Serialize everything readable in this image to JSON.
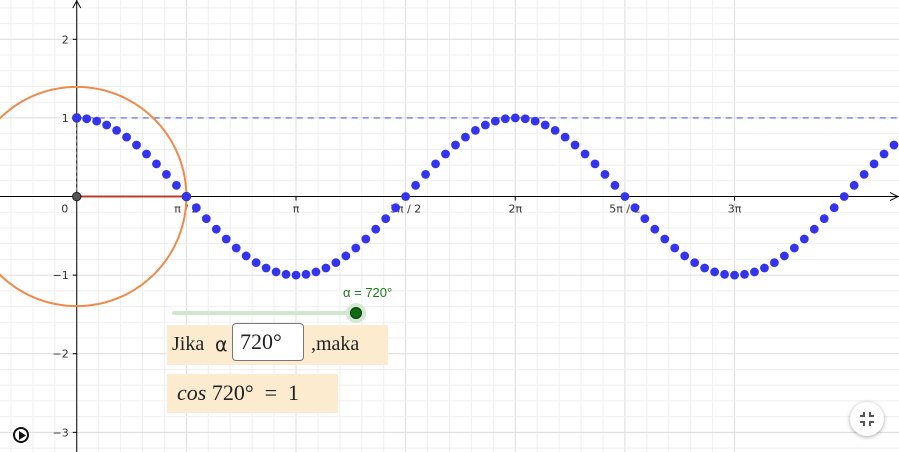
{
  "graph": {
    "x_ticks": [
      "0",
      "π / 2",
      "π",
      "3π / 2",
      "2π",
      "5π / 2",
      "3π"
    ],
    "y_ticks": [
      "2",
      "1",
      "0",
      "−1",
      "−2",
      "−3"
    ],
    "x_range": [
      -0.35,
      3.75
    ],
    "y_range": [
      -3.25,
      2.5
    ],
    "colors": {
      "curve": "#3434ee",
      "unit_circle": "#f08a4b",
      "radius": "#c0392b",
      "dashed_line": "#5c5cef",
      "axis": "#000000",
      "minor_grid": "#efefef",
      "major_grid": "#dcdcdc",
      "slider_track": "#cfe6cf",
      "slider_knob": "#0f6b0f"
    }
  },
  "chart_data": {
    "type": "scatter",
    "series": [
      {
        "x": [
          0,
          0.0455,
          0.0909,
          0.1364,
          0.1818,
          0.2273,
          0.2727,
          0.3182,
          0.3636,
          0.4091,
          0.4545,
          0.5,
          0.5455,
          0.5909,
          0.6364,
          0.6818,
          0.7273,
          0.7727,
          0.8182,
          0.8636,
          0.9091,
          0.9545,
          1,
          1.0455,
          1.0909,
          1.1364,
          1.1818,
          1.2273,
          1.2727,
          1.3182,
          1.3636,
          1.4091,
          1.4545,
          1.5,
          1.5455,
          1.5909,
          1.6364,
          1.6818,
          1.7273,
          1.7727,
          1.8182,
          1.8636,
          1.9091,
          1.9545,
          2,
          2.0455,
          2.0909,
          2.1364,
          2.1818,
          2.2273,
          2.2727,
          2.3182,
          2.3636,
          2.4091,
          2.4545,
          2.5,
          2.5455,
          2.5909,
          2.6364,
          2.6818,
          2.7273,
          2.7727,
          2.8182,
          2.8636,
          2.9091,
          2.9545,
          3,
          3.0455,
          3.0909,
          3.1364,
          3.1818,
          3.2273,
          3.2727,
          3.3182,
          3.3636,
          3.4091,
          3.4545,
          3.5,
          3.5455,
          3.5909,
          3.6364,
          3.6818,
          3.7273
        ],
        "y": [
          1,
          0.9898,
          0.9595,
          0.9096,
          0.8413,
          0.7557,
          0.6549,
          0.5406,
          0.4154,
          0.2817,
          0.1423,
          0,
          -0.1423,
          -0.2817,
          -0.4154,
          -0.5406,
          -0.6549,
          -0.7557,
          -0.8413,
          -0.9096,
          -0.9595,
          -0.9898,
          -1,
          -0.9898,
          -0.9595,
          -0.9096,
          -0.8413,
          -0.7557,
          -0.6549,
          -0.5406,
          -0.4154,
          -0.2817,
          -0.1423,
          0,
          0.1423,
          0.2817,
          0.4154,
          0.5406,
          0.6549,
          0.7557,
          0.8413,
          0.9096,
          0.9595,
          0.9898,
          1,
          0.9898,
          0.9595,
          0.9096,
          0.8413,
          0.7557,
          0.6549,
          0.5406,
          0.4154,
          0.2817,
          0.1423,
          0,
          -0.1423,
          -0.2817,
          -0.4154,
          -0.5406,
          -0.6549,
          -0.7557,
          -0.8413,
          -0.9096,
          -0.9595,
          -0.9898,
          -1,
          -0.9898,
          -0.9595,
          -0.9096,
          -0.8413,
          -0.7557,
          -0.6549,
          -0.5406,
          -0.4154,
          -0.2817,
          -0.1423,
          0,
          0.1423,
          0.2817,
          0.4154,
          0.5406,
          0.6549
        ]
      }
    ],
    "xlim": [
      -0.35,
      3.75
    ],
    "ylim": [
      -3.25,
      2.5
    ],
    "grid": true
  },
  "slider": {
    "label": "α = 720°",
    "value_fraction": 1
  },
  "input_panel": {
    "prefix": "Jika",
    "alpha": "α",
    "value": "720°",
    "suffix": ",maka"
  },
  "result": {
    "function": "cos",
    "text": " 720°  =  1"
  },
  "controls": {
    "play_icon": "play-icon",
    "fullscreen_icon": "exit-fullscreen-icon"
  }
}
